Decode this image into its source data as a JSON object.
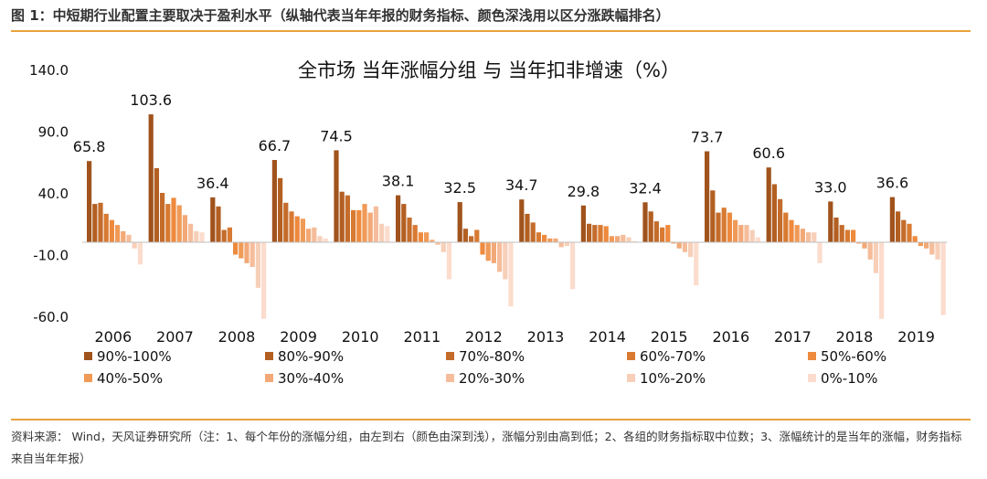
{
  "figure_title": "图 1：中短期行业配置主要取决于盈利水平（纵轴代表当年年报的财务指标、颜色深浅用以区分涨跌幅排名）",
  "source_label": "资料来源：",
  "source_text": "Wind，天风证券研究所（注：1、每个年份的涨幅分组，由左到右（颜色由深到浅），涨幅分别由高到低；2、各组的财务指标取中位数；3、涨幅统计的是当年的涨幅，财务指标来自当年年报）",
  "chart_data": {
    "type": "bar",
    "title": "全市场  当年涨幅分组  与  当年扣非增速（%）",
    "xlabel": "",
    "ylabel": "",
    "ylim": [
      -60,
      140
    ],
    "yticks": [
      "140.0",
      "90.0",
      "40.0",
      "-10.0",
      "-60.0"
    ],
    "ytick_values": [
      140,
      90,
      40,
      -10,
      -60
    ],
    "grid": false,
    "legend_position": "bottom",
    "categories": [
      "2006",
      "2007",
      "2008",
      "2009",
      "2010",
      "2011",
      "2012",
      "2013",
      "2014",
      "2015",
      "2016",
      "2017",
      "2018",
      "2019"
    ],
    "top_labels": [
      "65.8",
      "103.6",
      "36.4",
      "66.7",
      "74.5",
      "38.1",
      "32.5",
      "34.7",
      "29.8",
      "32.4",
      "73.7",
      "60.6",
      "33.0",
      "36.6"
    ],
    "series": [
      {
        "name": "90%-100%",
        "color": "#a0531c",
        "values": [
          65.8,
          103.6,
          36.4,
          66.7,
          74.5,
          38.1,
          32.5,
          34.7,
          29.8,
          32.4,
          73.7,
          60.6,
          33.0,
          36.6
        ]
      },
      {
        "name": "80%-90%",
        "color": "#b35f22",
        "values": [
          31,
          60,
          29,
          52,
          41,
          31,
          11,
          23,
          15,
          25,
          42,
          47,
          20,
          25
        ]
      },
      {
        "name": "70%-80%",
        "color": "#c46c2b",
        "values": [
          32,
          40,
          10,
          32,
          38,
          20,
          5,
          16,
          14,
          17,
          24,
          35,
          14,
          18
        ]
      },
      {
        "name": "60%-70%",
        "color": "#d87a32",
        "values": [
          23,
          31,
          12,
          25,
          26,
          14,
          10,
          8,
          14,
          12,
          28,
          24,
          10,
          15
        ]
      },
      {
        "name": "50%-60%",
        "color": "#ee8a3e",
        "values": [
          18,
          36,
          -10,
          21,
          26,
          8,
          -10,
          6,
          13,
          14,
          24,
          18,
          10,
          5
        ]
      },
      {
        "name": "40%-50%",
        "color": "#f09a57",
        "values": [
          14,
          30,
          -13,
          19,
          31,
          8,
          -15,
          3,
          5,
          -1,
          18,
          14,
          -1,
          -3
        ]
      },
      {
        "name": "30%-40%",
        "color": "#f2a977",
        "values": [
          9,
          22,
          -17,
          11,
          24,
          2,
          -17,
          3,
          5,
          -5,
          14,
          11,
          -5,
          -5
        ]
      },
      {
        "name": "20%-30%",
        "color": "#f5bd9b",
        "values": [
          6,
          15,
          -20,
          12,
          29,
          -2,
          -24,
          -4,
          6,
          -8,
          14,
          8,
          -14,
          -10
        ]
      },
      {
        "name": "10%-20%",
        "color": "#f7cfb8",
        "values": [
          -5,
          9,
          -37,
          5,
          15,
          -8,
          -30,
          -3,
          4,
          -12,
          10,
          8,
          -25,
          -14
        ]
      },
      {
        "name": "0%-10%",
        "color": "#fbdccd",
        "values": [
          -18,
          8,
          -62,
          3,
          13,
          -30,
          -52,
          -38,
          1,
          -35,
          4,
          -17,
          -62,
          -59
        ]
      }
    ]
  }
}
